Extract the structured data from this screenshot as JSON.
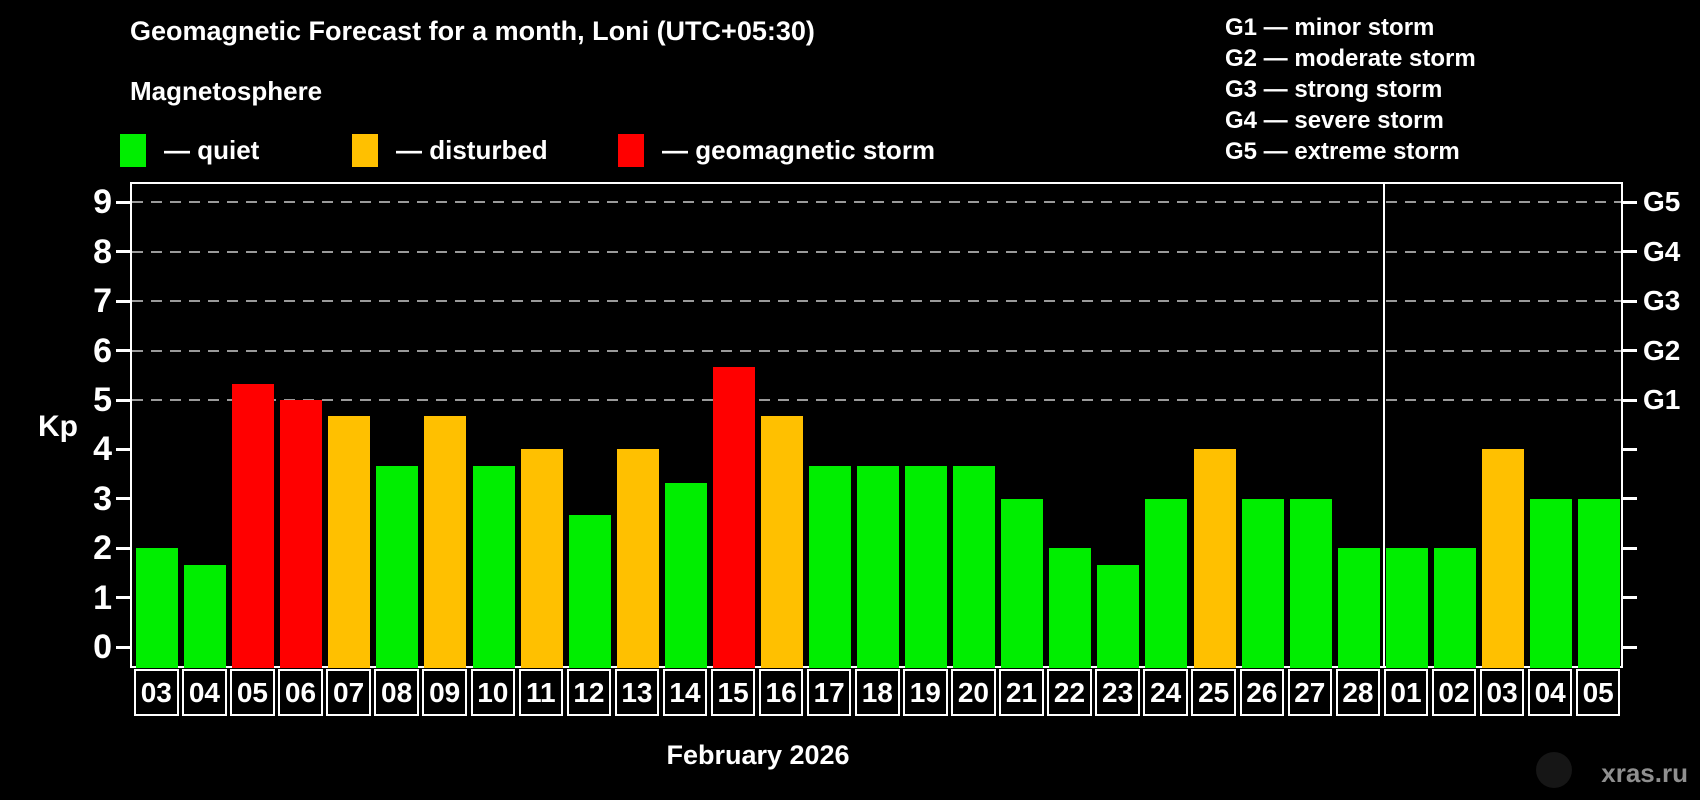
{
  "title": "Geomagnetic Forecast for a month, Loni (UTC+05:30)",
  "subtitle": "Magnetosphere",
  "magnetosphere_legend": [
    {
      "key": "quiet",
      "label": "— quiet"
    },
    {
      "key": "disturbed",
      "label": "— disturbed"
    },
    {
      "key": "storm",
      "label": "— geomagnetic storm"
    }
  ],
  "storm_scale_legend": [
    "G1 — minor storm",
    "G2 — moderate storm",
    "G3 — strong storm",
    "G4 — severe storm",
    "G5 — extreme storm"
  ],
  "colors": {
    "quiet": "#00ee00",
    "disturbed": "#ffc000",
    "storm": "#ff0000",
    "background": "#000000",
    "axis": "#ffffff",
    "gridline": "#9a9a9a",
    "watermark": "#8f8f8f"
  },
  "month_label": "February 2026",
  "watermark": "xras.ru",
  "chart_data": {
    "type": "bar",
    "title": "Geomagnetic Forecast for a month, Loni (UTC+05:30)",
    "xlabel": "February 2026",
    "ylabel": "Kp",
    "ylim": [
      0,
      9
    ],
    "y_ticks": [
      0,
      1,
      2,
      3,
      4,
      5,
      6,
      7,
      8,
      9
    ],
    "gridlines_at_kp": [
      5,
      6,
      7,
      8,
      9
    ],
    "grid_style": "dashed",
    "legend_position": "top",
    "right_axis_labels": [
      {
        "text": "G1",
        "kp": 5
      },
      {
        "text": "G2",
        "kp": 6
      },
      {
        "text": "G3",
        "kp": 7
      },
      {
        "text": "G4",
        "kp": 8
      },
      {
        "text": "G5",
        "kp": 9
      }
    ],
    "categories": [
      "03",
      "04",
      "05",
      "06",
      "07",
      "08",
      "09",
      "10",
      "11",
      "12",
      "13",
      "14",
      "15",
      "16",
      "17",
      "18",
      "19",
      "20",
      "21",
      "22",
      "23",
      "24",
      "25",
      "26",
      "27",
      "28",
      "01",
      "02",
      "03",
      "04",
      "05"
    ],
    "values": [
      2,
      1.67,
      5.33,
      5,
      4.67,
      3.67,
      4.67,
      3.67,
      4,
      2.67,
      4,
      3.33,
      5.67,
      4.67,
      3.67,
      3.67,
      3.67,
      3.67,
      3,
      2,
      1.67,
      3,
      4,
      3,
      3,
      2,
      2,
      2,
      4,
      3,
      3
    ],
    "statuses": [
      "quiet",
      "quiet",
      "storm",
      "storm",
      "disturbed",
      "quiet",
      "disturbed",
      "quiet",
      "disturbed",
      "quiet",
      "disturbed",
      "quiet",
      "storm",
      "disturbed",
      "quiet",
      "quiet",
      "quiet",
      "quiet",
      "quiet",
      "quiet",
      "quiet",
      "quiet",
      "disturbed",
      "quiet",
      "quiet",
      "quiet",
      "quiet",
      "quiet",
      "disturbed",
      "quiet",
      "quiet"
    ],
    "month_separator_after_index": 25
  }
}
